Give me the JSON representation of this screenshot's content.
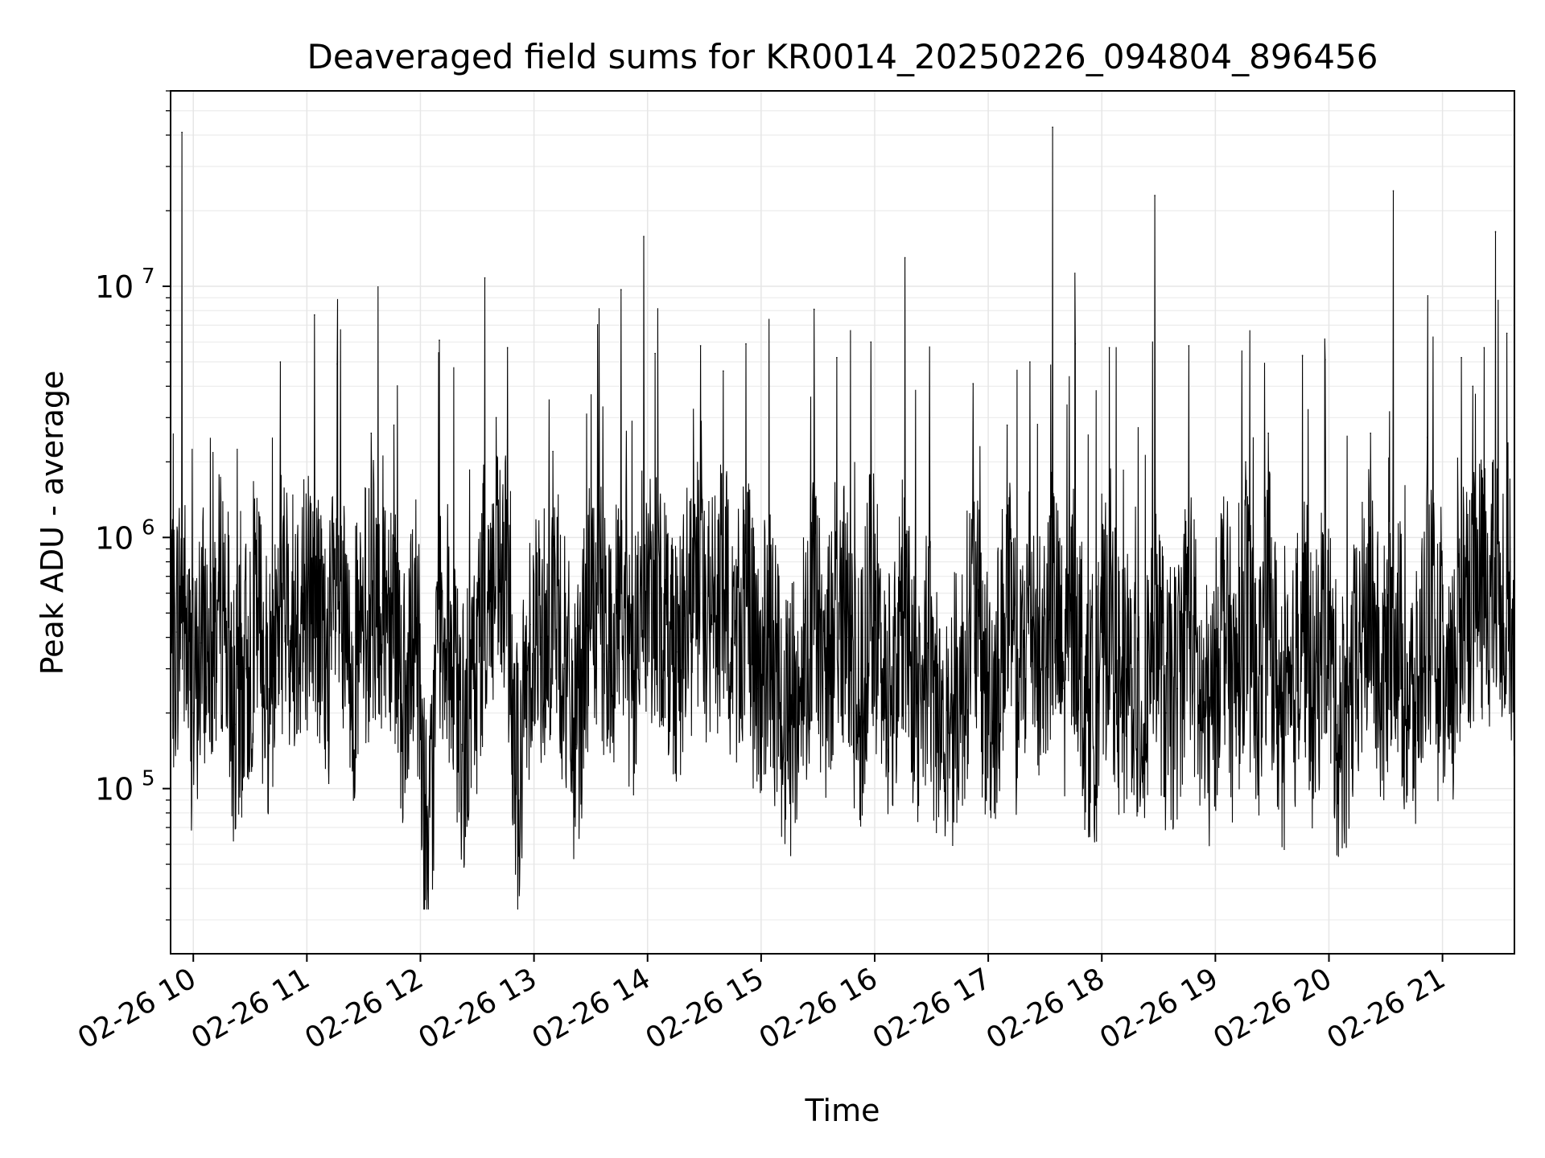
{
  "chart_data": {
    "type": "line",
    "title": "Deaveraged field sums for KR0014_20250226_094804_896456",
    "xlabel": "Time",
    "ylabel": "Peak ADU - average",
    "x_axis": {
      "kind": "time",
      "range": [
        "02-26 09:48",
        "02-26 21:38"
      ],
      "tick_labels": [
        "02-26 10",
        "02-26 11",
        "02-26 12",
        "02-26 13",
        "02-26 14",
        "02-26 15",
        "02-26 16",
        "02-26 17",
        "02-26 18",
        "02-26 19",
        "02-26 20",
        "02-26 21"
      ]
    },
    "y_axis": {
      "scale": "log",
      "range": [
        22000,
        60000000
      ],
      "tick_labels": [
        {
          "value": 100000,
          "base": "10",
          "exp": "5"
        },
        {
          "value": 1000000,
          "base": "10",
          "exp": "6"
        },
        {
          "value": 10000000,
          "base": "10",
          "exp": "7"
        }
      ]
    },
    "grid": true,
    "line_color": "#000000",
    "series": [
      {
        "x": [
          "02-26 09:48",
          "02-26 09:51",
          "02-26 09:54",
          "02-26 09:57",
          "02-26 10:00",
          "02-26 10:04",
          "02-26 10:10",
          "02-26 10:16",
          "02-26 10:22",
          "02-26 10:28",
          "02-26 10:34",
          "02-26 10:40",
          "02-26 10:46",
          "02-26 10:52",
          "02-26 10:58",
          "02-26 11:04",
          "02-26 11:10",
          "02-26 11:16",
          "02-26 11:22",
          "02-26 11:28",
          "02-26 11:34",
          "02-26 11:40",
          "02-26 11:46",
          "02-26 11:52",
          "02-26 11:58",
          "02-26 12:04",
          "02-26 12:10",
          "02-26 12:16",
          "02-26 12:22",
          "02-26 12:28",
          "02-26 12:34",
          "02-26 12:40",
          "02-26 12:46",
          "02-26 12:52",
          "02-26 12:58",
          "02-26 13:04",
          "02-26 13:10",
          "02-26 13:16",
          "02-26 13:22",
          "02-26 13:28",
          "02-26 13:34",
          "02-26 13:40",
          "02-26 13:46",
          "02-26 13:52",
          "02-26 13:58",
          "02-26 14:04",
          "02-26 14:10",
          "02-26 14:16",
          "02-26 14:22",
          "02-26 14:28",
          "02-26 14:34",
          "02-26 14:40",
          "02-26 14:46",
          "02-26 14:52",
          "02-26 14:58",
          "02-26 15:04",
          "02-26 15:10",
          "02-26 15:16",
          "02-26 15:22",
          "02-26 15:28",
          "02-26 15:34",
          "02-26 15:40",
          "02-26 15:46",
          "02-26 15:52",
          "02-26 15:58",
          "02-26 16:04",
          "02-26 16:10",
          "02-26 16:16",
          "02-26 16:22",
          "02-26 16:28",
          "02-26 16:34",
          "02-26 16:40",
          "02-26 16:46",
          "02-26 16:52",
          "02-26 16:58",
          "02-26 17:04",
          "02-26 17:10",
          "02-26 17:16",
          "02-26 17:22",
          "02-26 17:28",
          "02-26 17:34",
          "02-26 17:40",
          "02-26 17:46",
          "02-26 17:52",
          "02-26 17:58",
          "02-26 18:04",
          "02-26 18:10",
          "02-26 18:16",
          "02-26 18:22",
          "02-26 18:28",
          "02-26 18:34",
          "02-26 18:40",
          "02-26 18:46",
          "02-26 18:52",
          "02-26 18:58",
          "02-26 19:04",
          "02-26 19:10",
          "02-26 19:16",
          "02-26 19:22",
          "02-26 19:28",
          "02-26 19:34",
          "02-26 19:40",
          "02-26 19:46",
          "02-26 19:52",
          "02-26 19:58",
          "02-26 20:04",
          "02-26 20:10",
          "02-26 20:16",
          "02-26 20:22",
          "02-26 20:28",
          "02-26 20:34",
          "02-26 20:40",
          "02-26 20:46",
          "02-26 20:52",
          "02-26 20:58",
          "02-26 21:04",
          "02-26 21:10",
          "02-26 21:16",
          "02-26 21:22",
          "02-26 21:28",
          "02-26 21:34",
          "02-26 21:38"
        ],
        "y": [
          300000,
          420000,
          41000000,
          350000,
          200000,
          380000,
          420000,
          950000,
          180000,
          300000,
          500000,
          250000,
          5000000,
          450000,
          600000,
          7700000,
          300000,
          4900000,
          280000,
          350000,
          2600000,
          600000,
          2800000,
          180000,
          480000,
          40000,
          6100000,
          350000,
          150000,
          250000,
          10800000,
          3000000,
          5700000,
          90000,
          450000,
          400000,
          2200000,
          300000,
          150000,
          450000,
          500000,
          320000,
          9700000,
          280000,
          15800000,
          5400000,
          450000,
          350000,
          500000,
          5800000,
          450000,
          4600000,
          380000,
          5900000,
          250000,
          400000,
          220000,
          180000,
          300000,
          8100000,
          250000,
          5200000,
          400000,
          200000,
          6000000,
          300000,
          250000,
          13000000,
          220000,
          380000,
          180000,
          200000,
          250000,
          4100000,
          240000,
          250000,
          2800000,
          220000,
          5000000,
          300000,
          43000000,
          250000,
          5900000,
          200000,
          220000,
          5700000,
          200000,
          300000,
          180000,
          23000000,
          200000,
          250000,
          5800000,
          200000,
          180000,
          700000,
          220000,
          2000000,
          200000,
          2600000,
          200000,
          180000,
          5300000,
          200000,
          5100000,
          180000,
          200000,
          350000,
          2600000,
          220000,
          24000000,
          250000,
          200000,
          2500000,
          300000,
          180000,
          5200000,
          4000000,
          5700000,
          16500000,
          6500000,
          450000
        ]
      }
    ]
  }
}
